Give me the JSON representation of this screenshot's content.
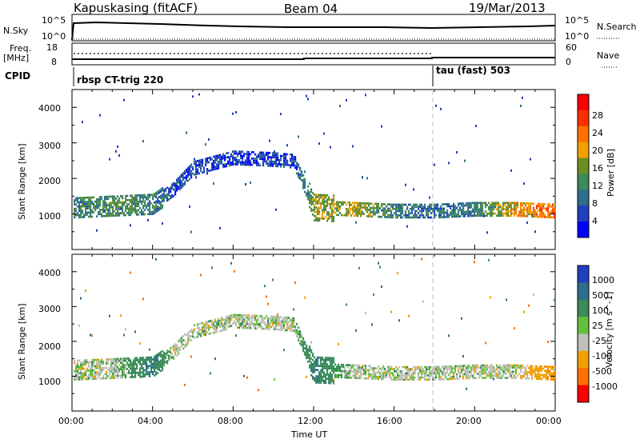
{
  "header": {
    "station": "Kapuskasing (fitACF)",
    "beam": "Beam 04",
    "date": "19/Mar/2013"
  },
  "top_panels": {
    "nsky_label": "N.Sky",
    "nsky_ticks": [
      "10^5",
      "10^0"
    ],
    "nsearch_label": "N.Search",
    "nsearch_ticks": [
      "10^5",
      "10^0"
    ],
    "freq_label": "Freq.",
    "freq_unit": "[MHz]",
    "freq_ticks": [
      "18",
      "8"
    ],
    "nave_label": "Nave",
    "nave_ticks": [
      "60",
      "0"
    ],
    "cpid_label": "CPID",
    "cpid_segments": [
      "rbsp CT-trig 220",
      "tau (fast) 503"
    ]
  },
  "xaxis": {
    "label": "Time UT",
    "ticks": [
      "00:00",
      "04:00",
      "08:00",
      "12:00",
      "16:00",
      "20:00",
      "00:00"
    ]
  },
  "colors": {
    "power_scale": [
      "#0000ff",
      "#1f3fbf",
      "#2e6e8a",
      "#3a8a5a",
      "#6b8e23",
      "#f0a000",
      "#ff7000",
      "#ff3000",
      "#ff0000"
    ],
    "velocity_scale": [
      "#1f3fbf",
      "#2e6e8a",
      "#3a8a5a",
      "#63c03a",
      "#c0c0b8",
      "#f0a000",
      "#ff7000",
      "#ff0000"
    ]
  },
  "chart_data": [
    {
      "type": "heatmap",
      "title": "",
      "ylabel": "Slant Range [km]",
      "xlabel": "",
      "ylim": [
        0,
        4500
      ],
      "yticks": [
        "1000",
        "2000",
        "3000",
        "4000"
      ],
      "colorbar_label": "Power [dB]",
      "colorbar_ticks": [
        "4",
        "8",
        "12",
        "16",
        "20",
        "24",
        "28"
      ],
      "x_hours": [
        0,
        2,
        4,
        5,
        6,
        8,
        10,
        11,
        12,
        14,
        16,
        18,
        20,
        22,
        24
      ],
      "band_center_km": [
        1200,
        1250,
        1300,
        1700,
        2300,
        2600,
        2550,
        2500,
        1200,
        1150,
        1100,
        1100,
        1150,
        1150,
        1100
      ],
      "dominant_power_db": [
        10,
        12,
        10,
        6,
        5,
        5,
        5,
        5,
        14,
        16,
        10,
        8,
        10,
        18,
        22
      ]
    },
    {
      "type": "heatmap",
      "title": "",
      "ylabel": "Slant Range [km]",
      "xlabel": "Time UT",
      "ylim": [
        0,
        4500
      ],
      "yticks": [
        "1000",
        "2000",
        "3000",
        "4000"
      ],
      "colorbar_label": "Velocity [m s^-1]",
      "colorbar_ticks": [
        "1000",
        "500",
        "100",
        "25",
        "-25",
        "-100",
        "-500",
        "-1000"
      ],
      "x_hours": [
        0,
        2,
        4,
        5,
        6,
        8,
        10,
        11,
        12,
        14,
        16,
        18,
        20,
        22,
        24
      ],
      "band_center_km": [
        1200,
        1250,
        1300,
        1700,
        2300,
        2600,
        2550,
        2500,
        1200,
        1150,
        1100,
        1100,
        1150,
        1150,
        1100
      ],
      "dominant_velocity_ms": [
        0,
        0,
        100,
        0,
        0,
        0,
        0,
        0,
        100,
        0,
        0,
        0,
        0,
        0,
        -100
      ]
    }
  ]
}
